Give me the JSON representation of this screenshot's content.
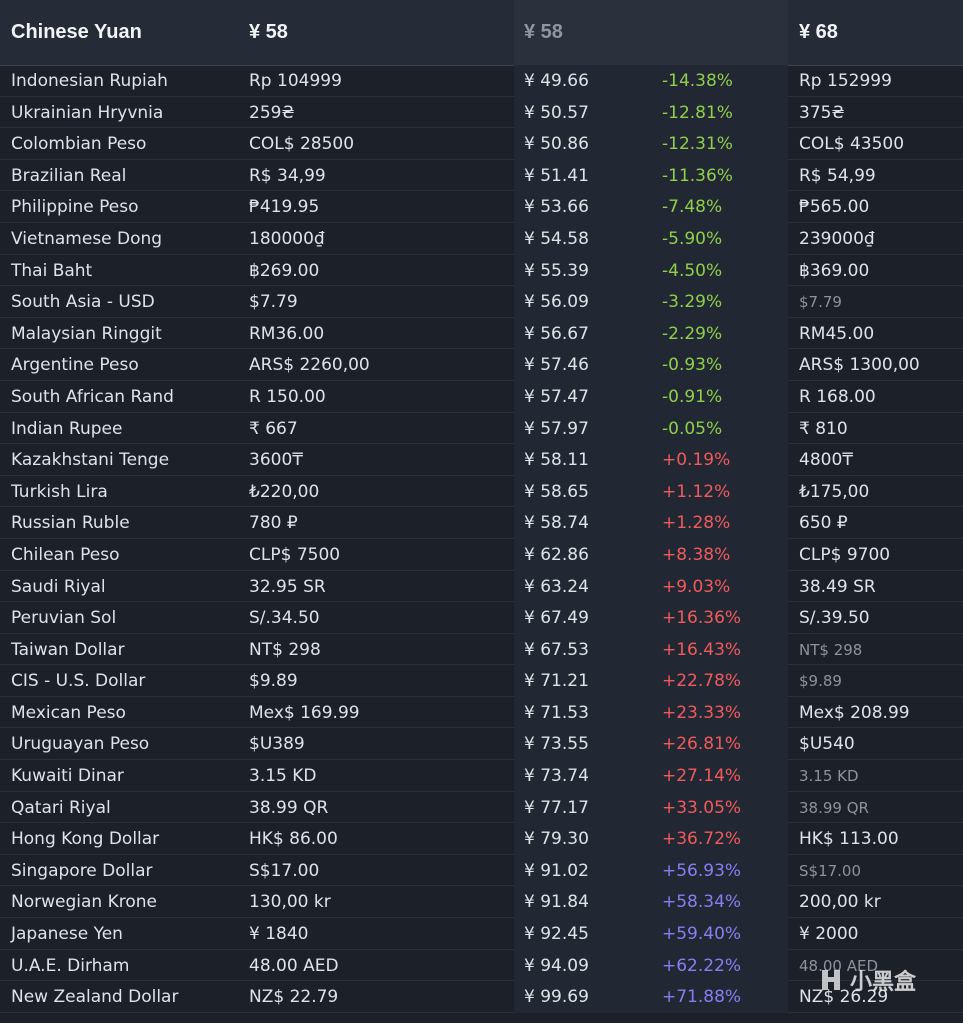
{
  "header": {
    "currency": "Chinese Yuan",
    "local_price": "¥ 58",
    "cny_price": "¥ 58",
    "alt_price": "¥ 68"
  },
  "rows": [
    {
      "name": "Indonesian Rupiah",
      "local": "Rp 104999",
      "cny": "¥ 49.66",
      "diff": "-14.38%",
      "alt": "Rp 152999",
      "trend": "neg",
      "alt_muted": false
    },
    {
      "name": "Ukrainian Hryvnia",
      "local": "259₴",
      "cny": "¥ 50.57",
      "diff": "-12.81%",
      "alt": "375₴",
      "trend": "neg",
      "alt_muted": false
    },
    {
      "name": "Colombian Peso",
      "local": "COL$ 28500",
      "cny": "¥ 50.86",
      "diff": "-12.31%",
      "alt": "COL$ 43500",
      "trend": "neg",
      "alt_muted": false
    },
    {
      "name": "Brazilian Real",
      "local": "R$ 34,99",
      "cny": "¥ 51.41",
      "diff": "-11.36%",
      "alt": "R$ 54,99",
      "trend": "neg",
      "alt_muted": false
    },
    {
      "name": "Philippine Peso",
      "local": "₱419.95",
      "cny": "¥ 53.66",
      "diff": "-7.48%",
      "alt": "₱565.00",
      "trend": "neg",
      "alt_muted": false
    },
    {
      "name": "Vietnamese Dong",
      "local": "180000₫",
      "cny": "¥ 54.58",
      "diff": "-5.90%",
      "alt": "239000₫",
      "trend": "neg",
      "alt_muted": false
    },
    {
      "name": "Thai Baht",
      "local": "฿269.00",
      "cny": "¥ 55.39",
      "diff": "-4.50%",
      "alt": "฿369.00",
      "trend": "neg",
      "alt_muted": false
    },
    {
      "name": "South Asia - USD",
      "local": "$7.79",
      "cny": "¥ 56.09",
      "diff": "-3.29%",
      "alt": "$7.79",
      "trend": "neg",
      "alt_muted": true
    },
    {
      "name": "Malaysian Ringgit",
      "local": "RM36.00",
      "cny": "¥ 56.67",
      "diff": "-2.29%",
      "alt": "RM45.00",
      "trend": "neg",
      "alt_muted": false
    },
    {
      "name": "Argentine Peso",
      "local": "ARS$ 2260,00",
      "cny": "¥ 57.46",
      "diff": "-0.93%",
      "alt": "ARS$ 1300,00",
      "trend": "neg",
      "alt_muted": false
    },
    {
      "name": "South African Rand",
      "local": "R 150.00",
      "cny": "¥ 57.47",
      "diff": "-0.91%",
      "alt": "R 168.00",
      "trend": "neg",
      "alt_muted": false
    },
    {
      "name": "Indian Rupee",
      "local": "₹ 667",
      "cny": "¥ 57.97",
      "diff": "-0.05%",
      "alt": "₹ 810",
      "trend": "neg",
      "alt_muted": false
    },
    {
      "name": "Kazakhstani Tenge",
      "local": "3600₸",
      "cny": "¥ 58.11",
      "diff": "+0.19%",
      "alt": "4800₸",
      "trend": "pos",
      "alt_muted": false
    },
    {
      "name": "Turkish Lira",
      "local": "₺220,00",
      "cny": "¥ 58.65",
      "diff": "+1.12%",
      "alt": "₺175,00",
      "trend": "pos",
      "alt_muted": false
    },
    {
      "name": "Russian Ruble",
      "local": "780 ₽",
      "cny": "¥ 58.74",
      "diff": "+1.28%",
      "alt": "650 ₽",
      "trend": "pos",
      "alt_muted": false
    },
    {
      "name": "Chilean Peso",
      "local": "CLP$ 7500",
      "cny": "¥ 62.86",
      "diff": "+8.38%",
      "alt": "CLP$ 9700",
      "trend": "pos",
      "alt_muted": false
    },
    {
      "name": "Saudi Riyal",
      "local": "32.95 SR",
      "cny": "¥ 63.24",
      "diff": "+9.03%",
      "alt": "38.49 SR",
      "trend": "pos",
      "alt_muted": false
    },
    {
      "name": "Peruvian Sol",
      "local": "S/.34.50",
      "cny": "¥ 67.49",
      "diff": "+16.36%",
      "alt": "S/.39.50",
      "trend": "pos",
      "alt_muted": false
    },
    {
      "name": "Taiwan Dollar",
      "local": "NT$ 298",
      "cny": "¥ 67.53",
      "diff": "+16.43%",
      "alt": "NT$ 298",
      "trend": "pos",
      "alt_muted": true
    },
    {
      "name": "CIS - U.S. Dollar",
      "local": "$9.89",
      "cny": "¥ 71.21",
      "diff": "+22.78%",
      "alt": "$9.89",
      "trend": "pos",
      "alt_muted": true
    },
    {
      "name": "Mexican Peso",
      "local": "Mex$ 169.99",
      "cny": "¥ 71.53",
      "diff": "+23.33%",
      "alt": "Mex$ 208.99",
      "trend": "pos",
      "alt_muted": false
    },
    {
      "name": "Uruguayan Peso",
      "local": "$U389",
      "cny": "¥ 73.55",
      "diff": "+26.81%",
      "alt": "$U540",
      "trend": "pos",
      "alt_muted": false
    },
    {
      "name": "Kuwaiti Dinar",
      "local": "3.15 KD",
      "cny": "¥ 73.74",
      "diff": "+27.14%",
      "alt": "3.15 KD",
      "trend": "pos",
      "alt_muted": true
    },
    {
      "name": "Qatari Riyal",
      "local": "38.99 QR",
      "cny": "¥ 77.17",
      "diff": "+33.05%",
      "alt": "38.99 QR",
      "trend": "pos",
      "alt_muted": true
    },
    {
      "name": "Hong Kong Dollar",
      "local": "HK$ 86.00",
      "cny": "¥ 79.30",
      "diff": "+36.72%",
      "alt": "HK$ 113.00",
      "trend": "pos",
      "alt_muted": false
    },
    {
      "name": "Singapore Dollar",
      "local": "S$17.00",
      "cny": "¥ 91.02",
      "diff": "+56.93%",
      "alt": "S$17.00",
      "trend": "high",
      "alt_muted": true
    },
    {
      "name": "Norwegian Krone",
      "local": "130,00 kr",
      "cny": "¥ 91.84",
      "diff": "+58.34%",
      "alt": "200,00 kr",
      "trend": "high",
      "alt_muted": false
    },
    {
      "name": "Japanese Yen",
      "local": "¥ 1840",
      "cny": "¥ 92.45",
      "diff": "+59.40%",
      "alt": "¥ 2000",
      "trend": "high",
      "alt_muted": false
    },
    {
      "name": "U.A.E. Dirham",
      "local": "48.00 AED",
      "cny": "¥ 94.09",
      "diff": "+62.22%",
      "alt": "48.00 AED",
      "trend": "high",
      "alt_muted": true
    },
    {
      "name": "New Zealand Dollar",
      "local": "NZ$ 22.79",
      "cny": "¥ 99.69",
      "diff": "+71.88%",
      "alt": "NZ$ 26.29",
      "trend": "high",
      "alt_muted": false
    }
  ],
  "watermark": {
    "text": "小黑盒",
    "icon": "heybox-logo-icon"
  },
  "colors": {
    "negative": "#8fcf4a",
    "positive": "#f05a5a",
    "high": "#8a7df2",
    "background": "#1b2029",
    "header": "#262c37"
  }
}
